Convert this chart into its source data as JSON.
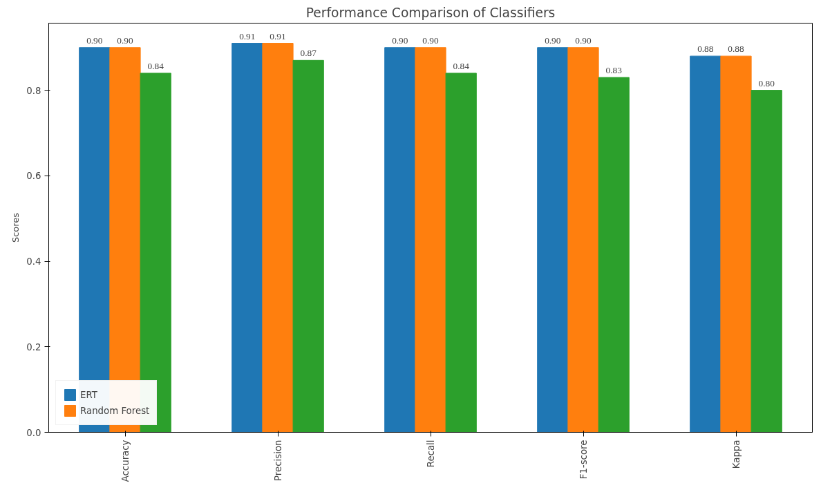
{
  "chart_data": {
    "type": "bar",
    "title": "Performance Comparison of Classifiers",
    "ylabel": "Scores",
    "categories": [
      "Accuracy",
      "Precision",
      "Recall",
      "F1-score",
      "Kappa"
    ],
    "series": [
      {
        "name": "ERT",
        "color": "#1f77b4",
        "values": [
          0.9,
          0.91,
          0.9,
          0.9,
          0.88
        ],
        "value_labels": [
          "0.90",
          "0.91",
          "0.90",
          "0.90",
          "0.88"
        ]
      },
      {
        "name": "Random Forest",
        "color": "#ff7f0e",
        "values": [
          0.9,
          0.91,
          0.9,
          0.9,
          0.88
        ],
        "value_labels": [
          "0.90",
          "0.91",
          "0.90",
          "0.90",
          "0.88"
        ]
      },
      {
        "color": "#2ca02c",
        "values": [
          0.84,
          0.87,
          0.84,
          0.83,
          0.8
        ],
        "value_labels": [
          "0.84",
          "0.87",
          "0.84",
          "0.83",
          "0.80"
        ]
      }
    ],
    "ylim": [
      0,
      0.957
    ],
    "yticks": [
      {
        "value": 0,
        "label": "0.0"
      },
      {
        "value": 0.2,
        "label": "0.2"
      },
      {
        "value": 0.4,
        "label": "0.4"
      },
      {
        "value": 0.6,
        "label": "0.6"
      },
      {
        "value": 0.8,
        "label": "0.8"
      }
    ],
    "grid": false,
    "legend": "bottom left"
  }
}
